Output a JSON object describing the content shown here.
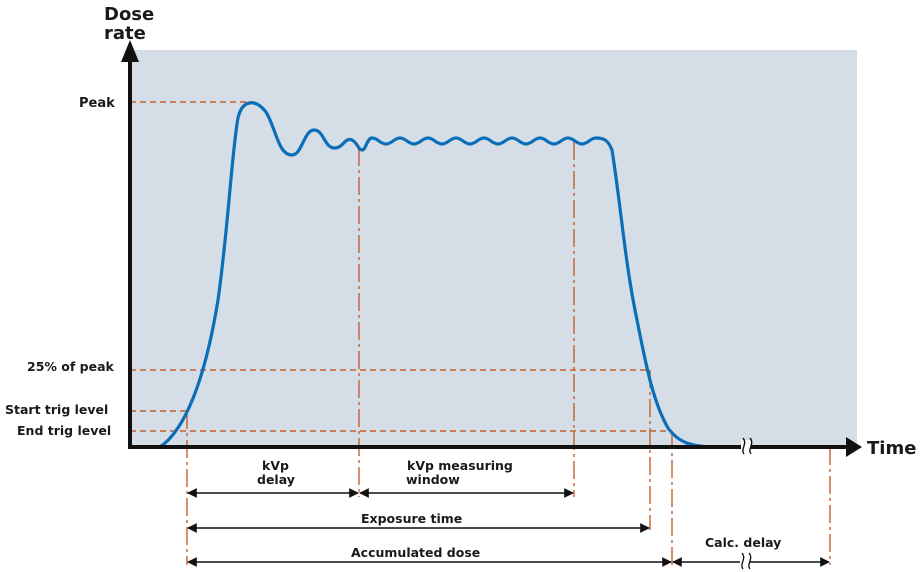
{
  "axes": {
    "y_label_line1": "Dose",
    "y_label_line2": "rate",
    "x_label": "Time"
  },
  "levels": {
    "peak": "Peak",
    "quarter_peak": "25% of peak",
    "start_trig": "Start trig level",
    "end_trig": "End trig level"
  },
  "intervals": {
    "kvp_delay_line1": "kVp",
    "kvp_delay_line2": "delay",
    "kvp_window_line1": "kVp measuring",
    "kvp_window_line2": "window",
    "exposure_time": "Exposure time",
    "accumulated_dose": "Accumulated dose",
    "calc_delay": "Calc. delay"
  },
  "colors": {
    "plot_background": "#d5dde6",
    "curve": "#0a6fb8",
    "guide_lines": "#c4602d",
    "axes": "#111111"
  }
}
